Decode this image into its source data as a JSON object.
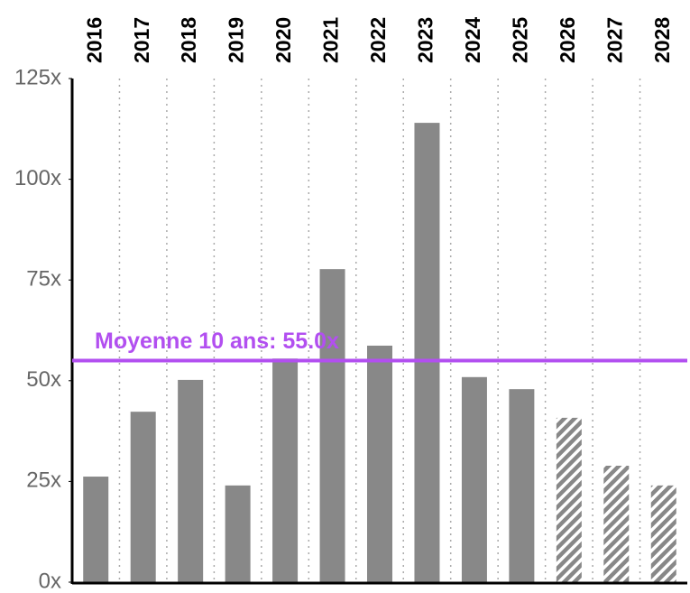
{
  "chart_data": {
    "type": "bar",
    "categories": [
      "2016",
      "2017",
      "2018",
      "2019",
      "2020",
      "2021",
      "2022",
      "2023",
      "2024",
      "2025",
      "2026",
      "2027",
      "2028"
    ],
    "values": [
      26.2,
      42.3,
      50.2,
      24.0,
      55.5,
      77.7,
      58.7,
      114.0,
      50.9,
      47.9,
      40.8,
      28.9,
      24.0
    ],
    "patterns": [
      "solid",
      "solid",
      "solid",
      "solid",
      "solid",
      "solid",
      "solid",
      "solid",
      "solid",
      "solid",
      "hatched",
      "hatched",
      "hatched"
    ],
    "color": "#888888",
    "ylim": [
      0,
      125
    ],
    "yticks": [
      {
        "value": 0,
        "label": "0x"
      },
      {
        "value": 25,
        "label": "25x"
      },
      {
        "value": 50,
        "label": "50x"
      },
      {
        "value": 75,
        "label": "75x"
      },
      {
        "value": 100,
        "label": "100x"
      },
      {
        "value": 125,
        "label": "125x"
      }
    ],
    "average": {
      "value": 55,
      "label": "Moyenne 10 ans: 55.0x",
      "color": "#b24ff0"
    }
  }
}
